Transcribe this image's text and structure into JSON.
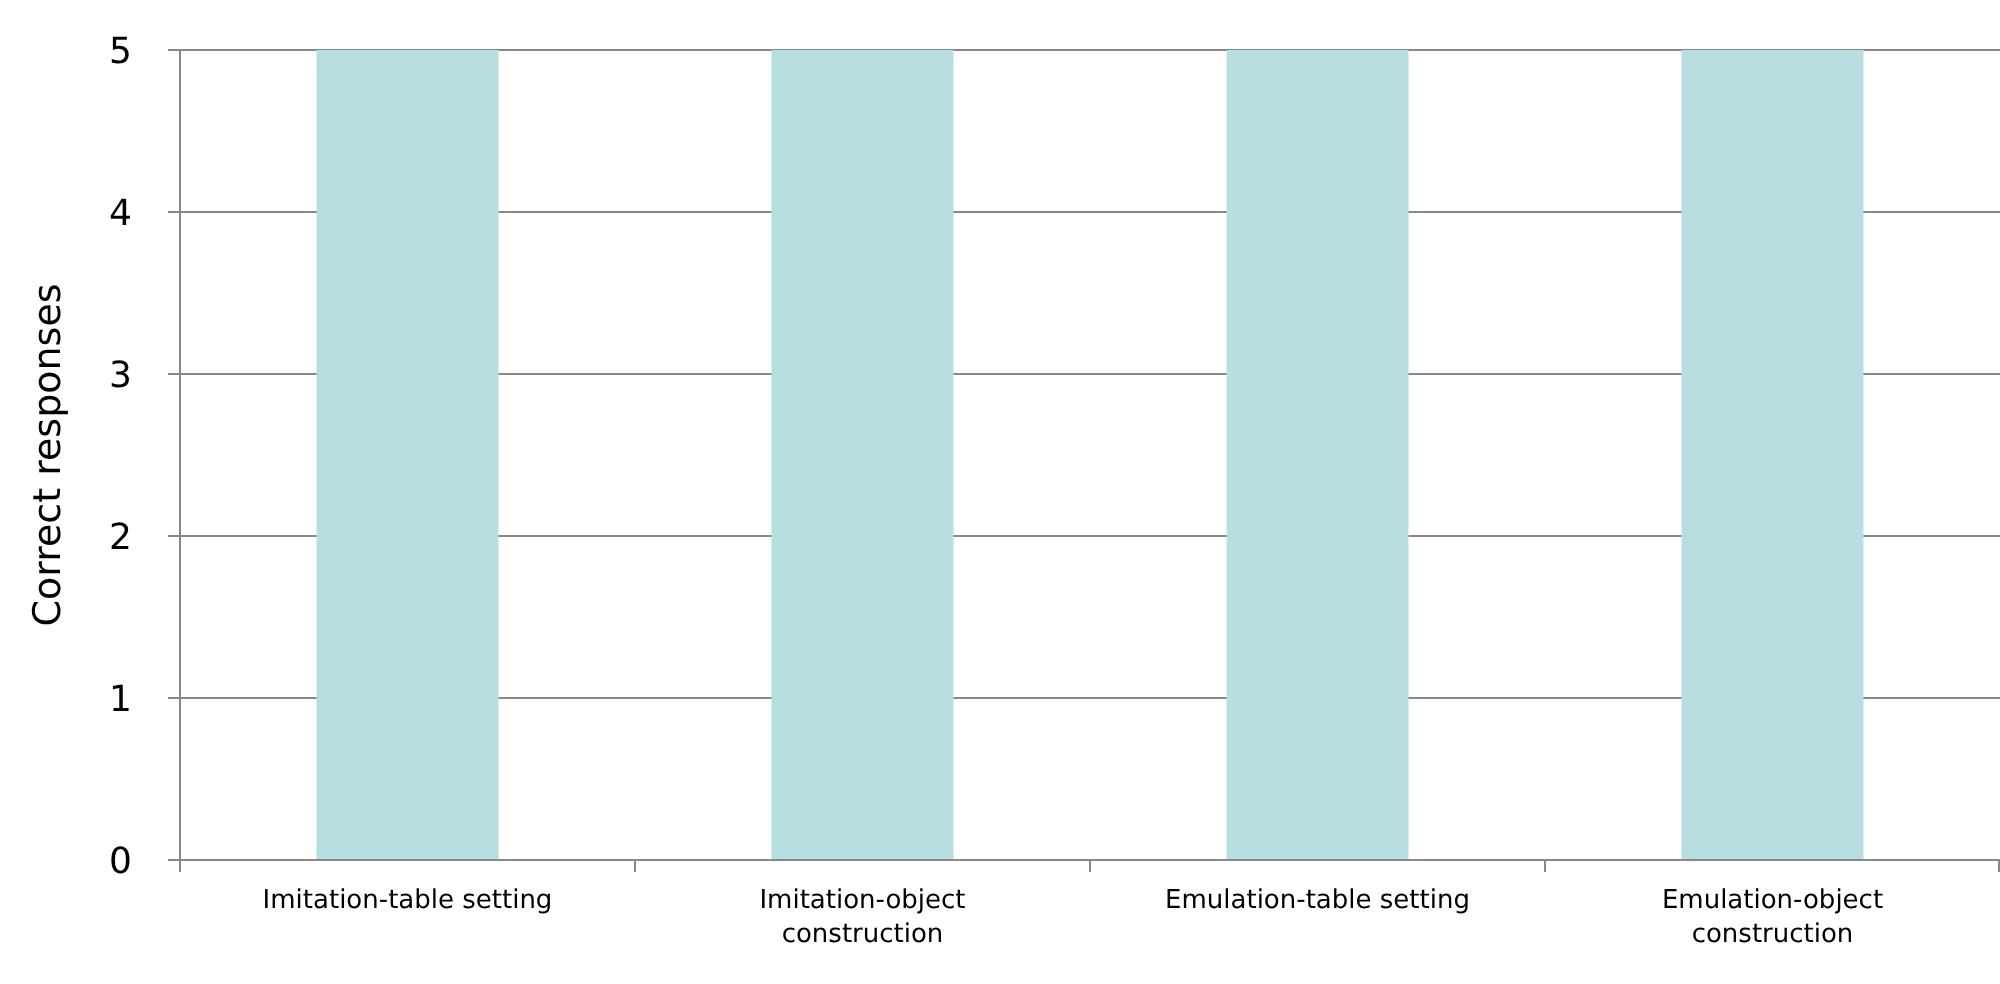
{
  "chart_data": {
    "type": "bar",
    "ylabel": "Correct responses",
    "categories": [
      "Imitation-table setting",
      "Imitation-object construction",
      "Emulation-table setting",
      "Emulation-object construction"
    ],
    "values": [
      5,
      5,
      5,
      5
    ],
    "color": "#b7dfe2",
    "ylim": [
      0,
      5
    ],
    "yticks": [
      0,
      1,
      2,
      3,
      4,
      5
    ],
    "grid": "y"
  }
}
